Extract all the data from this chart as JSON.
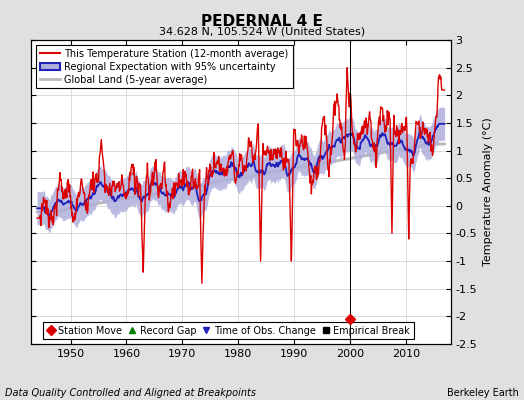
{
  "title": "PEDERNAL 4 E",
  "subtitle": "34.628 N, 105.524 W (United States)",
  "ylabel": "Temperature Anomaly (°C)",
  "footer_left": "Data Quality Controlled and Aligned at Breakpoints",
  "footer_right": "Berkeley Earth",
  "xlim": [
    1943,
    2018
  ],
  "ylim": [
    -2.5,
    3.0
  ],
  "yticks": [
    -2.5,
    -2,
    -1.5,
    -1,
    -0.5,
    0,
    0.5,
    1,
    1.5,
    2,
    2.5,
    3
  ],
  "ytick_labels": [
    "-2.5",
    "-2",
    "-1.5",
    "-1",
    "-0.5",
    "0",
    "0.5",
    "1",
    "1.5",
    "2",
    "2.5",
    "3"
  ],
  "xticks": [
    1950,
    1960,
    1970,
    1980,
    1990,
    2000,
    2010
  ],
  "bg_color": "#e0e0e0",
  "plot_bg_color": "#ffffff",
  "grid_color": "#cccccc",
  "station_color": "#dd0000",
  "regional_color": "#2222bb",
  "regional_fill_color": "#b0b0dd",
  "global_color": "#bbbbbb",
  "station_move_year": 2000,
  "station_move_value": -2.05,
  "vertical_line_year": 2000,
  "title_fontsize": 11,
  "subtitle_fontsize": 8,
  "tick_labelsize": 8,
  "legend_fontsize": 7,
  "footer_fontsize": 7
}
